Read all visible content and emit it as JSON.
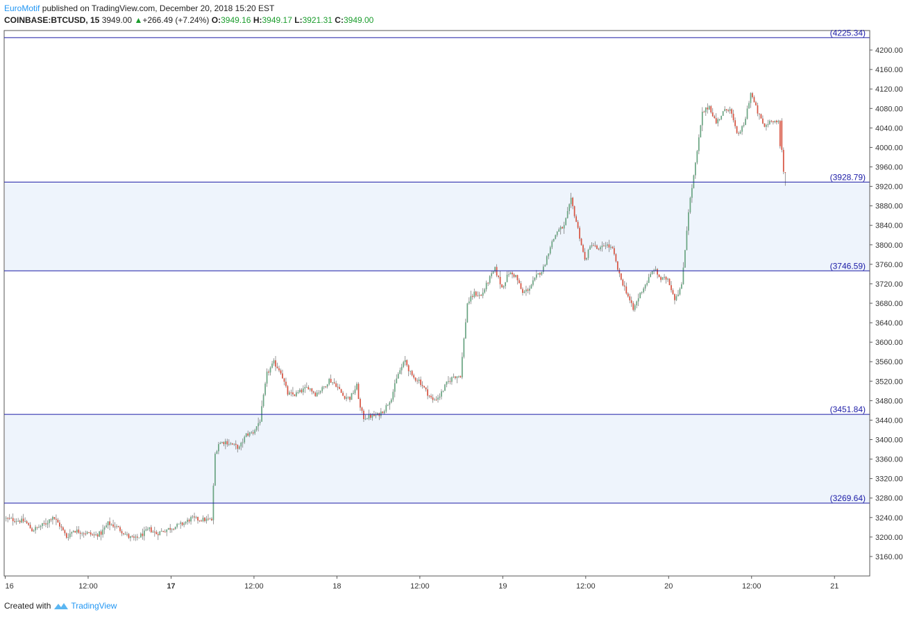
{
  "header": {
    "author": "EuroMotif",
    "published_text": "published on TradingView.com, December 20, 2018 15:20 EST",
    "symbol": "COINBASE:BTCUSD, 15",
    "last_price": "3949.00",
    "change_arrow": "▲",
    "change": "+266.49 (+7.24%)",
    "open_label": "O:",
    "open": "3949.16",
    "high_label": "H:",
    "high": "3949.17",
    "low_label": "L:",
    "low": "3921.31",
    "close_label": "C:",
    "close": "3949.00"
  },
  "footer": {
    "created_with": "Created with",
    "brand": "TradingView"
  },
  "colors": {
    "up": "#6ba583",
    "down": "#d75442",
    "level_line": "#1a1aa6",
    "zone_fill": "#eef4fc",
    "axis": "#555555"
  },
  "chart_data": {
    "type": "candlestick",
    "ylim": [
      3120,
      4240
    ],
    "y_ticks": [
      3160,
      3200,
      3240,
      3280,
      3320,
      3360,
      3400,
      3440,
      3480,
      3520,
      3560,
      3600,
      3640,
      3680,
      3720,
      3760,
      3800,
      3840,
      3880,
      3920,
      3960,
      4000,
      4040,
      4080,
      4120,
      4160,
      4200
    ],
    "x_ticks": [
      {
        "label": "16",
        "t": 0
      },
      {
        "label": "12:00",
        "t": 12
      },
      {
        "label": "17",
        "t": 24,
        "bold": true
      },
      {
        "label": "12:00",
        "t": 36
      },
      {
        "label": "18",
        "t": 48
      },
      {
        "label": "12:00",
        "t": 60
      },
      {
        "label": "19",
        "t": 72
      },
      {
        "label": "12:00",
        "t": 84
      },
      {
        "label": "20",
        "t": 96
      },
      {
        "label": "12:00",
        "t": 108
      },
      {
        "label": "21",
        "t": 120
      }
    ],
    "xlim_hours": [
      -0.15,
      125.1
    ],
    "levels": [
      {
        "value": 4225.34,
        "label": "(4225.34)"
      },
      {
        "value": 3928.79,
        "label": "(3928.79)"
      },
      {
        "value": 3746.59,
        "label": "(3746.59)"
      },
      {
        "value": 3451.84,
        "label": "(3451.84)"
      },
      {
        "value": 3269.64,
        "label": "(3269.64)"
      }
    ],
    "zones": [
      {
        "from": 3746.59,
        "to": 3928.79
      },
      {
        "from": 3269.64,
        "to": 3451.84
      }
    ],
    "price_path": [
      [
        0,
        3238
      ],
      [
        3,
        3232
      ],
      [
        4,
        3214
      ],
      [
        6,
        3228
      ],
      [
        7,
        3243
      ],
      [
        8,
        3224
      ],
      [
        9,
        3200
      ],
      [
        10,
        3214
      ],
      [
        12,
        3208
      ],
      [
        13,
        3203
      ],
      [
        14,
        3208
      ],
      [
        15,
        3228
      ],
      [
        16,
        3223
      ],
      [
        17,
        3212
      ],
      [
        18,
        3200
      ],
      [
        19,
        3196
      ],
      [
        20,
        3206
      ],
      [
        21,
        3216
      ],
      [
        22,
        3207
      ],
      [
        23,
        3213
      ],
      [
        25,
        3223
      ],
      [
        26,
        3228
      ],
      [
        27,
        3238
      ],
      [
        28,
        3236
      ],
      [
        30,
        3235
      ],
      [
        30.5,
        3370
      ],
      [
        31,
        3392
      ],
      [
        32,
        3396
      ],
      [
        34,
        3383
      ],
      [
        35,
        3410
      ],
      [
        36,
        3415
      ],
      [
        37,
        3440
      ],
      [
        38,
        3535
      ],
      [
        39,
        3558
      ],
      [
        40,
        3540
      ],
      [
        41,
        3494
      ],
      [
        42,
        3492
      ],
      [
        43,
        3500
      ],
      [
        44,
        3508
      ],
      [
        45,
        3494
      ],
      [
        46,
        3504
      ],
      [
        47,
        3523
      ],
      [
        48,
        3513
      ],
      [
        49,
        3490
      ],
      [
        50,
        3485
      ],
      [
        51,
        3510
      ],
      [
        51.5,
        3464
      ],
      [
        52,
        3445
      ],
      [
        53,
        3448
      ],
      [
        54,
        3450
      ],
      [
        55,
        3462
      ],
      [
        56,
        3487
      ],
      [
        57,
        3535
      ],
      [
        58,
        3562
      ],
      [
        59,
        3528
      ],
      [
        60,
        3522
      ],
      [
        61,
        3500
      ],
      [
        62,
        3480
      ],
      [
        63,
        3490
      ],
      [
        64,
        3515
      ],
      [
        65,
        3530
      ],
      [
        66,
        3532
      ],
      [
        67,
        3680
      ],
      [
        68,
        3700
      ],
      [
        69,
        3695
      ],
      [
        70,
        3725
      ],
      [
        71,
        3750
      ],
      [
        72,
        3712
      ],
      [
        73,
        3742
      ],
      [
        74,
        3736
      ],
      [
        75,
        3700
      ],
      [
        76,
        3712
      ],
      [
        77,
        3735
      ],
      [
        78,
        3752
      ],
      [
        79,
        3798
      ],
      [
        80,
        3828
      ],
      [
        81,
        3838
      ],
      [
        82,
        3892
      ],
      [
        83,
        3833
      ],
      [
        84,
        3768
      ],
      [
        85,
        3803
      ],
      [
        86,
        3788
      ],
      [
        87,
        3802
      ],
      [
        88,
        3790
      ],
      [
        89,
        3737
      ],
      [
        90,
        3704
      ],
      [
        91,
        3666
      ],
      [
        92,
        3700
      ],
      [
        93,
        3724
      ],
      [
        94,
        3751
      ],
      [
        95,
        3729
      ],
      [
        96,
        3731
      ],
      [
        97,
        3690
      ],
      [
        98,
        3715
      ],
      [
        99,
        3870
      ],
      [
        100,
        3965
      ],
      [
        101,
        4070
      ],
      [
        102,
        4085
      ],
      [
        103,
        4050
      ],
      [
        104,
        4072
      ],
      [
        105,
        4082
      ],
      [
        106,
        4025
      ],
      [
        107,
        4044
      ],
      [
        108,
        4112
      ],
      [
        109,
        4072
      ],
      [
        110,
        4042
      ],
      [
        111,
        4058
      ],
      [
        112,
        4050
      ],
      [
        112.5,
        3950
      ],
      [
        113,
        3945
      ]
    ],
    "final_candles": [
      {
        "t": 112.25,
        "o": 4055,
        "h": 4060,
        "l": 3990,
        "c": 3995
      },
      {
        "t": 112.5,
        "o": 3995,
        "h": 4000,
        "l": 3945,
        "c": 3950
      },
      {
        "t": 112.75,
        "o": 3949.16,
        "h": 3949.17,
        "l": 3921.31,
        "c": 3949.0
      }
    ]
  }
}
